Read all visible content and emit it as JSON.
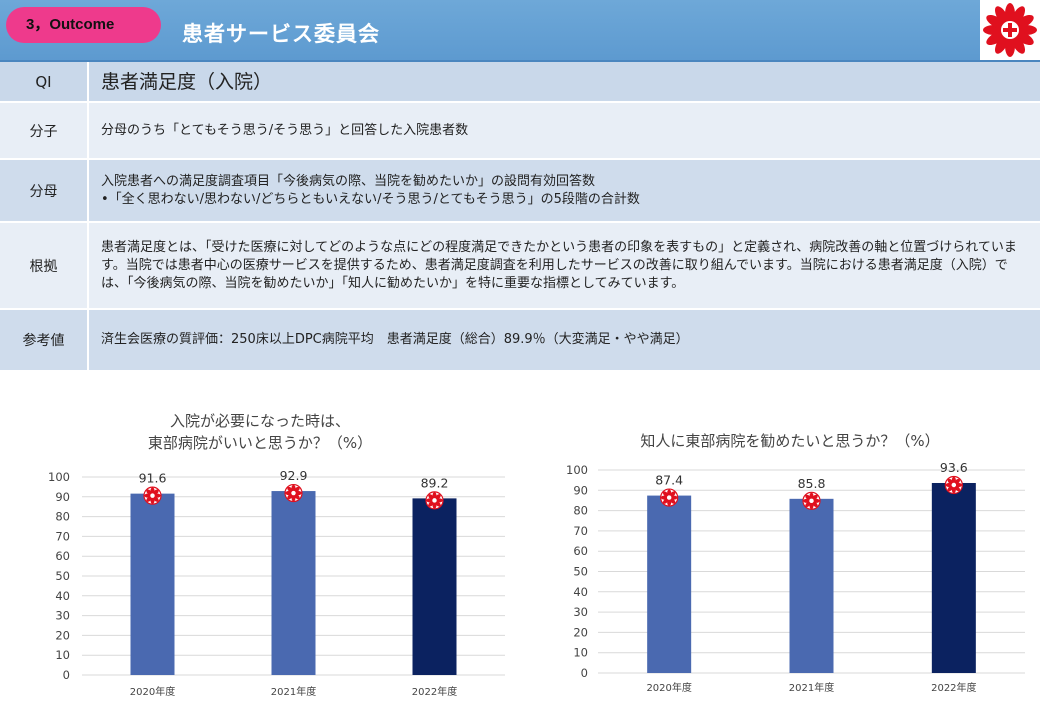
{
  "header": {
    "badge": "3，Outcome",
    "title": "患者サービス委員会",
    "logo": "saiseikai-logo"
  },
  "qi": {
    "label": "QI",
    "title": "患者満足度（入院）",
    "rows": [
      {
        "label": "分子",
        "lines": [
          "分母のうち「とてもそう思う/そう思う」と回答した入院患者数"
        ]
      },
      {
        "label": "分母",
        "lines": [
          "入院患者への満足度調査項目「今後病気の際、当院を勧めたいか」の設問有効回答数",
          "•「全く思わない/思わない/どちらともいえない/そう思う/とてもそう思う」の5段階の合計数"
        ]
      },
      {
        "label": "根拠",
        "lines": [
          "患者満足度とは、「受けた医療に対してどのような点にどの程度満足できたかという患者の印象を表すもの」と定義され、病院改善の軸と位置づけられています。当院では患者中心の医療サービスを提供するため、患者満足度調査を利用したサービスの改善に取り組んでいます。当院における患者満足度（入院）では、「今後病気の際、当院を勧めたいか」「知人に勧めたいか」を特に重要な指標としてみています。"
        ]
      },
      {
        "label": "参考値",
        "lines": [
          "済生会医療の質評価：250床以上DPC病院平均　患者満足度（総合）89.9％（大変満足・やや満足）"
        ]
      }
    ]
  },
  "chart_data": [
    {
      "type": "bar",
      "title": "入院が必要になった時は、\n東部病院がいいと思うか？（%）",
      "categories": [
        "2020年度",
        "2021年度",
        "2022年度"
      ],
      "values": [
        91.6,
        92.9,
        89.2
      ],
      "ylim": [
        0,
        100
      ],
      "yticks": [
        0,
        10,
        20,
        30,
        40,
        50,
        60,
        70,
        80,
        90,
        100
      ],
      "grid": true,
      "colors": [
        "#4a69b0",
        "#4a69b0",
        "#0b2260"
      ]
    },
    {
      "type": "bar",
      "title": "知人に東部病院を勧めたいと思うか？（%）",
      "categories": [
        "2020年度",
        "2021年度",
        "2022年度"
      ],
      "values": [
        87.4,
        85.8,
        93.6
      ],
      "ylim": [
        0,
        100
      ],
      "yticks": [
        0,
        10,
        20,
        30,
        40,
        50,
        60,
        70,
        80,
        90,
        100
      ],
      "grid": true,
      "colors": [
        "#4a69b0",
        "#4a69b0",
        "#0b2260"
      ]
    }
  ]
}
